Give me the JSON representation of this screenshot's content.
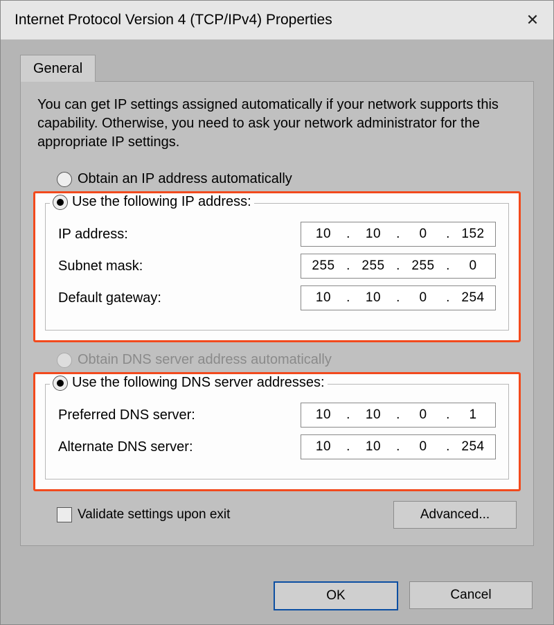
{
  "window": {
    "title": "Internet Protocol Version 4 (TCP/IPv4) Properties",
    "close_glyph": "✕"
  },
  "tab": {
    "label": "General"
  },
  "description": "You can get IP settings assigned automatically if your network supports this capability. Otherwise, you need to ask your network administrator for the appropriate IP settings.",
  "ip_section": {
    "auto_label": "Obtain an IP address automatically",
    "manual_label": "Use the following IP address:",
    "selected": "manual",
    "fields": {
      "ip_address": {
        "label": "IP address:",
        "octets": [
          "10",
          "10",
          "0",
          "152"
        ]
      },
      "subnet_mask": {
        "label": "Subnet mask:",
        "octets": [
          "255",
          "255",
          "255",
          "0"
        ]
      },
      "default_gateway": {
        "label": "Default gateway:",
        "octets": [
          "10",
          "10",
          "0",
          "254"
        ]
      }
    }
  },
  "dns_section": {
    "auto_label": "Obtain DNS server address automatically",
    "auto_disabled": true,
    "manual_label": "Use the following DNS server addresses:",
    "selected": "manual",
    "fields": {
      "preferred": {
        "label": "Preferred DNS server:",
        "octets": [
          "10",
          "10",
          "0",
          "1"
        ]
      },
      "alternate": {
        "label": "Alternate DNS server:",
        "octets": [
          "10",
          "10",
          "0",
          "254"
        ]
      }
    }
  },
  "validate_checkbox": {
    "label": "Validate settings upon exit",
    "checked": false
  },
  "buttons": {
    "advanced": "Advanced...",
    "ok": "OK",
    "cancel": "Cancel"
  },
  "colors": {
    "highlight_border": "#f24a1d",
    "dialog_bg_dim": "#b5b5b5",
    "panel_bg": "#c0c0c0",
    "highlight_bg": "#fdfdfd",
    "primary_btn_border": "#0b4ea2"
  }
}
